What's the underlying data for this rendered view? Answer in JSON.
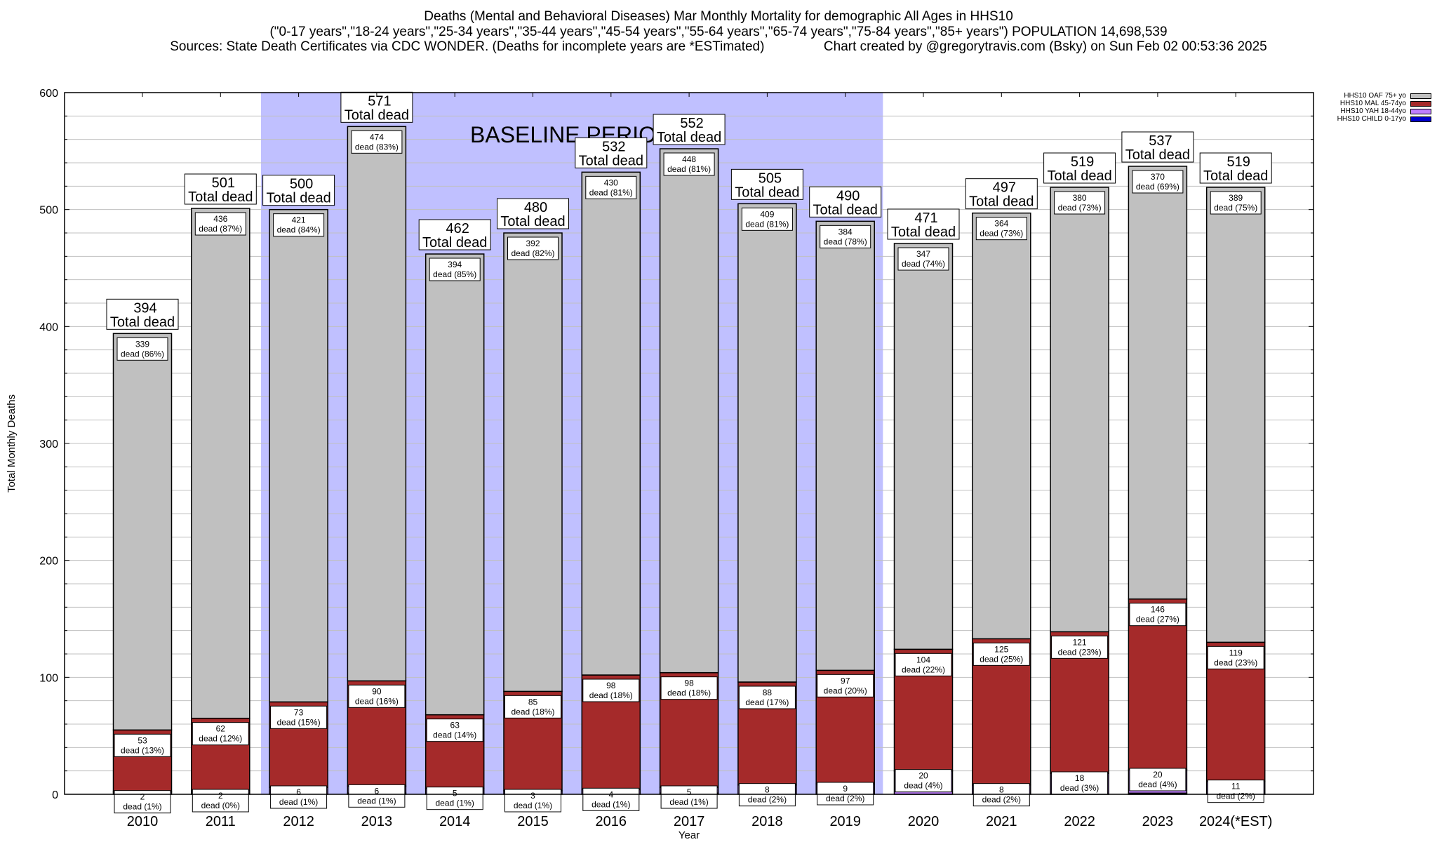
{
  "chart_data": {
    "type": "bar",
    "stacked": true,
    "title": "Deaths (Mental and Behavioral Diseases) Mar Monthly Mortality for demographic All Ages in HHS10",
    "subtitle": "(\"0-17 years\",\"18-24 years\",\"25-34 years\",\"35-44 years\",\"45-54 years\",\"55-64 years\",\"65-74 years\",\"75-84 years\",\"85+ years\") POPULATION 14,698,539",
    "source_line": "Sources: State Death Certificates via CDC WONDER. (Deaths for incomplete years are *ESTimated)                Chart created by @gregorytravis.com (Bsky) on Sun Feb 02 00:53:36 2025",
    "xlabel": "Year",
    "ylabel": "Total Monthly Deaths",
    "ylim": [
      0,
      600
    ],
    "yticks": [
      0,
      100,
      200,
      300,
      400,
      500,
      600
    ],
    "grid": true,
    "legend_position": "top-right",
    "annotation": "BASELINE PERIOD",
    "baseline_period": [
      "2012",
      "2019"
    ],
    "categories": [
      "2010",
      "2011",
      "2012",
      "2013",
      "2014",
      "2015",
      "2016",
      "2017",
      "2018",
      "2019",
      "2020",
      "2021",
      "2022",
      "2023",
      "2024(*EST)"
    ],
    "series": [
      {
        "name": "HHS10 CHILD 0-17yo",
        "color": "#0000cc",
        "values": [
          0,
          1,
          0,
          1,
          0,
          0,
          0,
          1,
          0,
          0,
          0,
          0,
          0,
          1,
          0
        ]
      },
      {
        "name": "HHS10 YAH 18-44yo",
        "color": "#c080ff",
        "values": [
          2,
          2,
          6,
          6,
          5,
          3,
          4,
          5,
          8,
          9,
          20,
          8,
          18,
          20,
          11
        ],
        "pct": [
          "1%",
          "0%",
          "1%",
          "1%",
          "1%",
          "1%",
          "1%",
          "1%",
          "2%",
          "2%",
          "4%",
          "2%",
          "3%",
          "4%",
          "2%"
        ]
      },
      {
        "name": "HHS10 MAL 45-74yo",
        "color": "#a52a2a",
        "values": [
          53,
          62,
          73,
          90,
          63,
          85,
          98,
          98,
          88,
          97,
          104,
          125,
          121,
          146,
          119
        ],
        "pct": [
          "13%",
          "12%",
          "15%",
          "16%",
          "14%",
          "18%",
          "18%",
          "18%",
          "17%",
          "20%",
          "22%",
          "25%",
          "23%",
          "27%",
          "23%"
        ]
      },
      {
        "name": "HHS10 OAF 75+ yo",
        "color": "#c0c0c0",
        "values": [
          339,
          436,
          421,
          474,
          394,
          392,
          430,
          448,
          409,
          384,
          347,
          364,
          380,
          370,
          389
        ],
        "pct": [
          "86%",
          "87%",
          "84%",
          "83%",
          "85%",
          "82%",
          "81%",
          "81%",
          "81%",
          "78%",
          "74%",
          "73%",
          "73%",
          "69%",
          "75%"
        ]
      }
    ],
    "totals": [
      394,
      501,
      500,
      571,
      462,
      480,
      532,
      552,
      505,
      490,
      471,
      497,
      519,
      537,
      519
    ],
    "total_label_suffix": "Total dead",
    "segment_label_word": "dead"
  },
  "legend": {
    "items": [
      {
        "label": "HHS10 OAF 75+ yo",
        "color": "#c0c0c0"
      },
      {
        "label": "HHS10 MAL 45-74yo",
        "color": "#a52a2a"
      },
      {
        "label": "HHS10 YAH 18-44yo",
        "color": "#c080ff"
      },
      {
        "label": "HHS10 CHILD 0-17yo",
        "color": "#0000cc"
      }
    ]
  },
  "colors": {
    "baseline_shade": "#c0c0ff",
    "grid": "#c0c0c0"
  }
}
